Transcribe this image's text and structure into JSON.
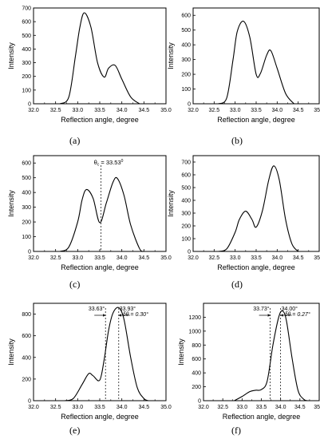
{
  "chart_data": [
    {
      "panel_label": "(a)",
      "type": "line",
      "xlabel": "Reflection angle, degree",
      "ylabel": "Intensity",
      "xlim": [
        32.0,
        35.0
      ],
      "ylim": [
        0,
        700
      ],
      "x_ticks": [
        "32.0",
        "32.5",
        "33.0",
        "33.5",
        "34.0",
        "34.5",
        "35.0"
      ],
      "y_ticks": [
        "0",
        "100",
        "200",
        "300",
        "400",
        "500",
        "600",
        "700"
      ],
      "series": [
        {
          "x": [
            32.6,
            32.8,
            32.95,
            33.05,
            33.15,
            33.3,
            33.45,
            33.6,
            33.7,
            33.85,
            34.0,
            34.2,
            34.4
          ],
          "y": [
            0,
            50,
            350,
            560,
            665,
            560,
            300,
            195,
            260,
            280,
            180,
            50,
            0
          ]
        }
      ],
      "annotations": []
    },
    {
      "panel_label": "(b)",
      "type": "line",
      "xlabel": "Reflection angle, degree",
      "ylabel": "Intensity",
      "xlim": [
        32.0,
        35.0
      ],
      "ylim": [
        0,
        650
      ],
      "x_ticks": [
        "32.0",
        "32.5",
        "33.0",
        "33.5",
        "34.0",
        "34.5",
        "35.0"
      ],
      "y_ticks": [
        "0",
        "100",
        "200",
        "300",
        "400",
        "500",
        "600"
      ],
      "series": [
        {
          "x": [
            32.6,
            32.8,
            32.95,
            33.05,
            33.2,
            33.35,
            33.5,
            33.6,
            33.75,
            33.85,
            34.0,
            34.2,
            34.4
          ],
          "y": [
            0,
            40,
            300,
            490,
            560,
            450,
            200,
            205,
            330,
            360,
            240,
            70,
            0
          ]
        }
      ],
      "annotations": []
    },
    {
      "panel_label": "(c)",
      "type": "line",
      "xlabel": "Reflection angle, degree",
      "ylabel": "Intensity",
      "xlim": [
        32.0,
        35.0
      ],
      "ylim": [
        0,
        650
      ],
      "x_ticks": [
        "32.0",
        "32.5",
        "33.0",
        "33.5",
        "34.0",
        "34.5",
        "35.0"
      ],
      "y_ticks": [
        "0",
        "100",
        "200",
        "300",
        "400",
        "500",
        "600"
      ],
      "series": [
        {
          "x": [
            32.6,
            32.8,
            33.0,
            33.1,
            33.2,
            33.35,
            33.5,
            33.65,
            33.8,
            33.9,
            34.05,
            34.2,
            34.4,
            34.5
          ],
          "y": [
            0,
            30,
            200,
            350,
            420,
            360,
            195,
            330,
            470,
            495,
            380,
            180,
            20,
            0
          ]
        }
      ],
      "annotations": [
        {
          "label": "θ",
          "sub": "c",
          "value": " = 33.53",
          "sup": "0",
          "x_line": 33.53
        }
      ]
    },
    {
      "panel_label": "(d)",
      "type": "line",
      "xlabel": "Reflection angle, degree",
      "ylabel": "Intensity",
      "xlim": [
        32.0,
        35.0
      ],
      "ylim": [
        0,
        750
      ],
      "x_ticks": [
        "32.0",
        "32.5",
        "33.0",
        "33.5",
        "34.0",
        "34.5",
        "35.0"
      ],
      "y_ticks": [
        "0",
        "100",
        "200",
        "300",
        "400",
        "500",
        "600",
        "700"
      ],
      "series": [
        {
          "x": [
            32.6,
            32.8,
            33.0,
            33.1,
            33.25,
            33.4,
            33.5,
            33.65,
            33.8,
            33.92,
            34.05,
            34.2,
            34.35,
            34.5
          ],
          "y": [
            0,
            20,
            150,
            250,
            315,
            250,
            190,
            320,
            560,
            670,
            560,
            250,
            60,
            0
          ]
        }
      ],
      "annotations": []
    },
    {
      "panel_label": "(e)",
      "type": "line",
      "xlabel": "Reflection angle, degree",
      "ylabel": "Intensity",
      "xlim": [
        32.0,
        35.0
      ],
      "ylim": [
        0,
        900
      ],
      "x_ticks": [
        "32.0",
        "32.5",
        "33.0",
        "33.5",
        "34.0",
        "34.5",
        "35.0"
      ],
      "y_ticks": [
        "0",
        "200",
        "400",
        "600",
        "800"
      ],
      "series": [
        {
          "x": [
            32.7,
            32.9,
            33.1,
            33.25,
            33.35,
            33.5,
            33.6,
            33.7,
            33.8,
            33.93,
            34.05,
            34.2,
            34.35,
            34.5,
            34.6
          ],
          "y": [
            0,
            20,
            150,
            250,
            230,
            190,
            380,
            650,
            810,
            860,
            750,
            400,
            120,
            20,
            0
          ]
        }
      ],
      "annotations": [
        {
          "label1": "33.63°",
          "label2": "33.93°",
          "delta": "δθ = 0.30°",
          "x1": 33.63,
          "x2": 33.93
        }
      ]
    },
    {
      "panel_label": "(f)",
      "type": "line",
      "xlabel": "Reflection angle, degree",
      "ylabel": "Intensity",
      "xlim": [
        32.0,
        35.0
      ],
      "ylim": [
        0,
        1400
      ],
      "x_ticks": [
        "32.0",
        "32.5",
        "33.0",
        "33.5",
        "34.0",
        "34.5",
        "35.0"
      ],
      "y_ticks": [
        "0",
        "200",
        "400",
        "600",
        "800",
        "1000",
        "1200"
      ],
      "series": [
        {
          "x": [
            32.8,
            33.0,
            33.2,
            33.35,
            33.5,
            33.65,
            33.8,
            33.95,
            34.05,
            34.15,
            34.3,
            34.45,
            34.6,
            34.7
          ],
          "y": [
            0,
            60,
            130,
            150,
            160,
            280,
            800,
            1200,
            1290,
            1150,
            600,
            150,
            20,
            0
          ]
        }
      ],
      "annotations": [
        {
          "label1": "33.73°",
          "label2": "34.00°",
          "delta": "δθ = 0.27°",
          "x1": 33.73,
          "x2": 34.0
        }
      ]
    }
  ]
}
